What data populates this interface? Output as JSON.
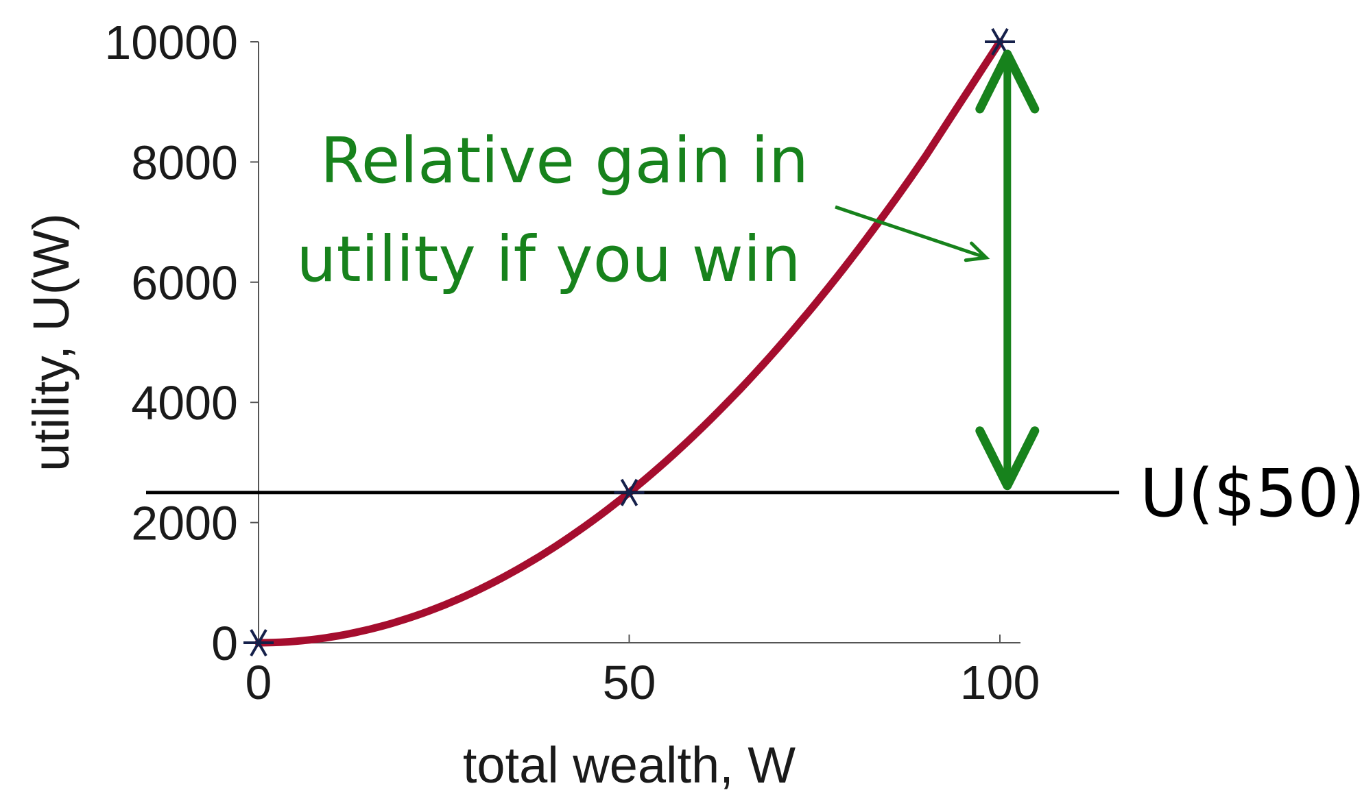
{
  "chart_data": {
    "type": "line",
    "title": "",
    "xlabel": "total wealth, W",
    "ylabel": "utility, U(W)",
    "xlim": [
      0,
      100
    ],
    "ylim": [
      0,
      10000
    ],
    "x_ticks": [
      0,
      50,
      100
    ],
    "y_ticks": [
      0,
      2000,
      4000,
      6000,
      8000,
      10000
    ],
    "grid": false,
    "series": [
      {
        "function": "U(W) = W^2",
        "x": [
          0,
          10,
          20,
          30,
          40,
          50,
          60,
          70,
          80,
          90,
          100
        ],
        "y": [
          0,
          100,
          400,
          900,
          1600,
          2500,
          3600,
          4900,
          6400,
          8100,
          10000
        ],
        "color": "#a50d2e"
      }
    ],
    "markers": [
      {
        "x": 0,
        "y": 0
      },
      {
        "x": 50,
        "y": 2500
      },
      {
        "x": 100,
        "y": 10000
      }
    ],
    "reference_line": {
      "y": 2500,
      "label": "U($50)",
      "color": "#000000"
    },
    "annotation": {
      "lines": [
        "Relative gain in",
        "utility if you win"
      ],
      "color": "#17821c",
      "arrow_from_y": 2500,
      "arrow_to_y": 10000,
      "arrow_x": 101
    }
  }
}
